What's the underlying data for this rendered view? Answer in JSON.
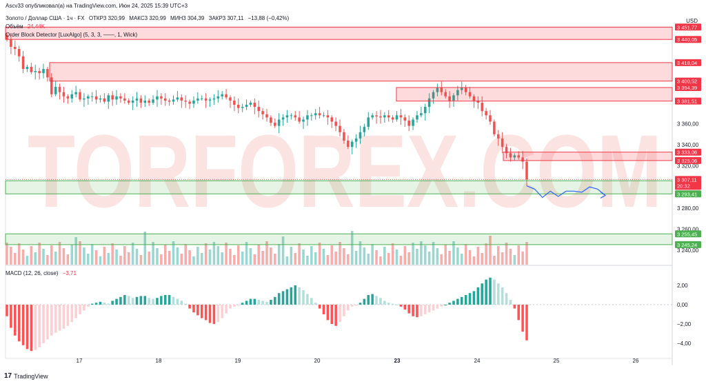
{
  "header": {
    "publisher": "Ascv33 опубликовал(а) на TradingView.com, Июн 24, 2025 15:39 UTC+3",
    "symbol": "Золото / Доллар США · 1ч · FX",
    "open": "ОТКР3 320,99",
    "high": "МАКС3 320,99",
    "low": "МИН3 304,39",
    "close": "ЗАКР3 307,11",
    "change": "−13,88 (−0,42%)",
    "volume_label": "Объём",
    "volume_value": "24,44K",
    "indicator": "Order Block Detector [LuxAlgo] (5, 3, 3, ——, 1, Wick)",
    "macd_label": "MACD (12, 26, close)",
    "macd_value": "−3,71"
  },
  "currency": "USD",
  "watermark": "TORFOREX.COM",
  "footer": {
    "brand": "TradingView"
  },
  "colors": {
    "up": "#26a69a",
    "down": "#ef5350",
    "zone_red": "#f23645",
    "zone_green": "#4caf50",
    "forecast": "#2962ff"
  },
  "chart_data": [
    {
      "type": "candlestick",
      "x_ticks": [
        "17",
        "18",
        "19",
        "20",
        "23",
        "24",
        "25",
        "26"
      ],
      "price_ticks": [
        3360,
        3340,
        3320,
        3300,
        3280,
        3260,
        3240
      ],
      "price_tick_labels": [
        "3 360,00",
        "3 340,00",
        "3 320,00",
        "3 300,00",
        "3 280,00",
        "3 260,00",
        "3 240,00"
      ],
      "ylim": [
        3236,
        3450
      ],
      "series": [
        {
          "name": "Золото / Доллар США",
          "close": [
            3440,
            3433,
            3431,
            3424,
            3412,
            3414,
            3409,
            3410,
            3408,
            3412,
            3404,
            3388,
            3395,
            3390,
            3386,
            3384,
            3388,
            3390,
            3383,
            3384,
            3386,
            3386,
            3383,
            3384,
            3381,
            3387,
            3383,
            3386,
            3384,
            3382,
            3380,
            3382,
            3384,
            3380,
            3382,
            3380,
            3383,
            3386,
            3384,
            3382,
            3381,
            3383,
            3385,
            3382,
            3381,
            3379,
            3382,
            3384,
            3384,
            3382,
            3383,
            3384,
            3386,
            3388,
            3385,
            3382,
            3378,
            3375,
            3376,
            3378,
            3380,
            3376,
            3372,
            3369,
            3366,
            3361,
            3358,
            3364,
            3366,
            3368,
            3368,
            3366,
            3362,
            3364,
            3368,
            3368,
            3370,
            3368,
            3368,
            3366,
            3362,
            3358,
            3352,
            3344,
            3338,
            3343,
            3346,
            3352,
            3357,
            3366,
            3368,
            3367,
            3366,
            3368,
            3366,
            3364,
            3368,
            3366,
            3363,
            3358,
            3364,
            3368,
            3370,
            3376,
            3384,
            3390,
            3394,
            3390,
            3386,
            3382,
            3387,
            3392,
            3394,
            3390,
            3386,
            3382,
            3380,
            3372,
            3368,
            3362,
            3350,
            3346,
            3338,
            3332,
            3328,
            3330,
            3328,
            3324,
            3307
          ]
        }
      ],
      "price_levels": {
        "current": "3 307,11",
        "countdown": "20:32",
        "labels": [
          "3 451,77",
          "3 440,05",
          "3 418,04",
          "3 400,52",
          "3 394,39",
          "3 381,51",
          "3 333,06",
          "3 325,06",
          "3 305,87",
          "3 293,41",
          "3 255,45",
          "3 245,24"
        ]
      },
      "order_blocks": [
        {
          "kind": "bearish",
          "top": 3451.77,
          "bottom": 3440.05
        },
        {
          "kind": "bearish",
          "top": 3418.04,
          "bottom": 3400.52
        },
        {
          "kind": "bearish",
          "top": 3394.39,
          "bottom": 3381.51
        },
        {
          "kind": "bearish",
          "top": 3333.06,
          "bottom": 3325.06
        },
        {
          "kind": "bullish",
          "top": 3305.87,
          "bottom": 3293.41
        },
        {
          "kind": "bullish",
          "top": 3255.45,
          "bottom": 3245.24
        }
      ],
      "forecast_path": [
        3301,
        3298,
        3290,
        3296,
        3291,
        3296,
        3296,
        3295,
        3300,
        3298,
        3292
      ]
    },
    {
      "type": "bar",
      "series": [
        {
          "name": "MACD",
          "values": [
            -1.2,
            -2.4,
            -3.2,
            -3.8,
            -4.2,
            -4.6,
            -4.8,
            -4.7,
            -4.4,
            -4.0,
            -3.6,
            -3.2,
            -2.9,
            -2.7,
            -2.5,
            -2.2,
            -1.8,
            -1.4,
            -1.0,
            -0.6,
            -0.2,
            0.1,
            0.2,
            0.3,
            0.2,
            0.1,
            0.4,
            0.6,
            0.8,
            1.0,
            0.9,
            0.7,
            0.8,
            0.9,
            0.9,
            0.7,
            0.6,
            0.7,
            0.9,
            1.0,
            1.0,
            0.8,
            0.6,
            0.4,
            0.1,
            -0.4,
            -0.8,
            -1.1,
            -1.4,
            -1.6,
            -1.9,
            -2.0,
            -1.8,
            -1.4,
            -0.9,
            -0.4,
            -0.2,
            -0.1,
            0.2,
            0.4,
            0.6,
            0.6,
            0.5,
            0.4,
            0.3,
            0.5,
            0.8,
            1.2,
            1.4,
            1.6,
            1.8,
            2.0,
            1.8,
            1.5,
            1.1,
            0.7,
            0.2,
            -0.4,
            -1.0,
            -1.6,
            -2.0,
            -2.2,
            -1.8,
            -1.2,
            -0.6,
            -0.2,
            -0.1,
            0.2,
            0.6,
            1.0,
            1.1,
            0.9,
            0.7,
            0.4,
            0.2,
            0.1,
            0.0,
            -0.2,
            -0.5,
            -0.9,
            -1.2,
            -1.3,
            -1.2,
            -1.0,
            -0.8,
            -0.6,
            -0.4,
            -0.2,
            0.0,
            0.2,
            0.4,
            0.6,
            0.8,
            1.0,
            1.2,
            1.4,
            1.8,
            2.2,
            2.6,
            2.8,
            2.6,
            2.2,
            1.8,
            1.2,
            0.5,
            -0.4,
            -1.6,
            -2.8,
            -3.7
          ]
        }
      ],
      "y_ticks": [
        "2,00",
        "0,00",
        "−2,00",
        "−4,00"
      ]
    }
  ]
}
